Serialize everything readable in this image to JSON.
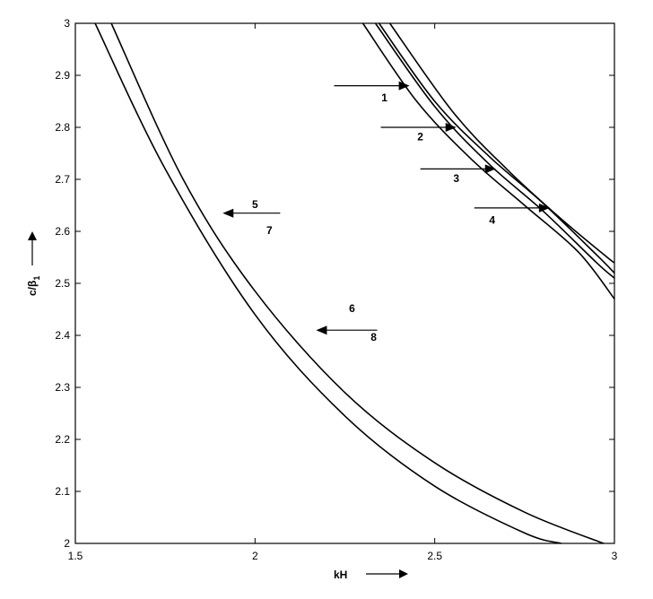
{
  "chart_data": {
    "type": "line",
    "title": "",
    "xlabel": "kH",
    "ylabel": "c/β",
    "ylabel_subscript": "1",
    "xlim": [
      1.5,
      3
    ],
    "ylim": [
      2,
      3
    ],
    "x_ticks": [
      "1.5",
      "2",
      "2.5",
      "3"
    ],
    "y_ticks": [
      "2",
      "2.1",
      "2.2",
      "2.3",
      "2.4",
      "2.5",
      "2.6",
      "2.7",
      "2.8",
      "2.9",
      "3"
    ],
    "grid": false,
    "legend": "none",
    "series": [
      {
        "x": [
          1.555,
          1.75,
          2.0,
          2.25,
          2.5,
          2.75,
          2.852
        ],
        "y": [
          3.0,
          2.72,
          2.44,
          2.245,
          2.11,
          2.02,
          2.0
        ]
      },
      {
        "x": [
          1.6,
          1.8,
          2.0,
          2.25,
          2.5,
          2.75,
          2.97
        ],
        "y": [
          3.0,
          2.7,
          2.485,
          2.29,
          2.155,
          2.06,
          2.0
        ]
      },
      {
        "x": [
          2.3,
          2.45,
          2.6,
          2.75,
          2.9,
          3.0
        ],
        "y": [
          3.0,
          2.85,
          2.74,
          2.65,
          2.56,
          2.47
        ]
      },
      {
        "x": [
          2.335,
          2.5,
          2.65,
          2.8,
          2.95,
          3.0
        ],
        "y": [
          3.0,
          2.84,
          2.73,
          2.64,
          2.54,
          2.51
        ]
      },
      {
        "x": [
          2.345,
          2.5,
          2.65,
          2.8,
          2.95,
          3.0
        ],
        "y": [
          3.0,
          2.85,
          2.745,
          2.655,
          2.555,
          2.52
        ]
      },
      {
        "x": [
          2.375,
          2.55,
          2.7,
          2.85,
          2.98,
          3.0
        ],
        "y": [
          3.0,
          2.83,
          2.72,
          2.625,
          2.55,
          2.54
        ]
      }
    ],
    "annotations": [
      {
        "text": "1",
        "x": 2.36,
        "y": 2.85
      },
      {
        "text": "2",
        "x": 2.46,
        "y": 2.775
      },
      {
        "text": "3",
        "x": 2.56,
        "y": 2.695
      },
      {
        "text": "4",
        "x": 2.66,
        "y": 2.615
      },
      {
        "text": "5",
        "x": 2.0,
        "y": 2.645
      },
      {
        "text": "7",
        "x": 2.04,
        "y": 2.595
      },
      {
        "text": "6",
        "x": 2.27,
        "y": 2.445
      },
      {
        "text": "8",
        "x": 2.33,
        "y": 2.39
      }
    ],
    "arrows": [
      {
        "from": [
          2.22,
          2.88
        ],
        "to": [
          2.43,
          2.88
        ]
      },
      {
        "from": [
          2.35,
          2.8
        ],
        "to": [
          2.56,
          2.8
        ]
      },
      {
        "from": [
          2.46,
          2.72
        ],
        "to": [
          2.67,
          2.72
        ]
      },
      {
        "from": [
          2.61,
          2.645
        ],
        "to": [
          2.82,
          2.645
        ]
      },
      {
        "from": [
          2.07,
          2.635
        ],
        "to": [
          1.91,
          2.635
        ]
      },
      {
        "from": [
          2.34,
          2.41
        ],
        "to": [
          2.17,
          2.41
        ]
      }
    ]
  }
}
